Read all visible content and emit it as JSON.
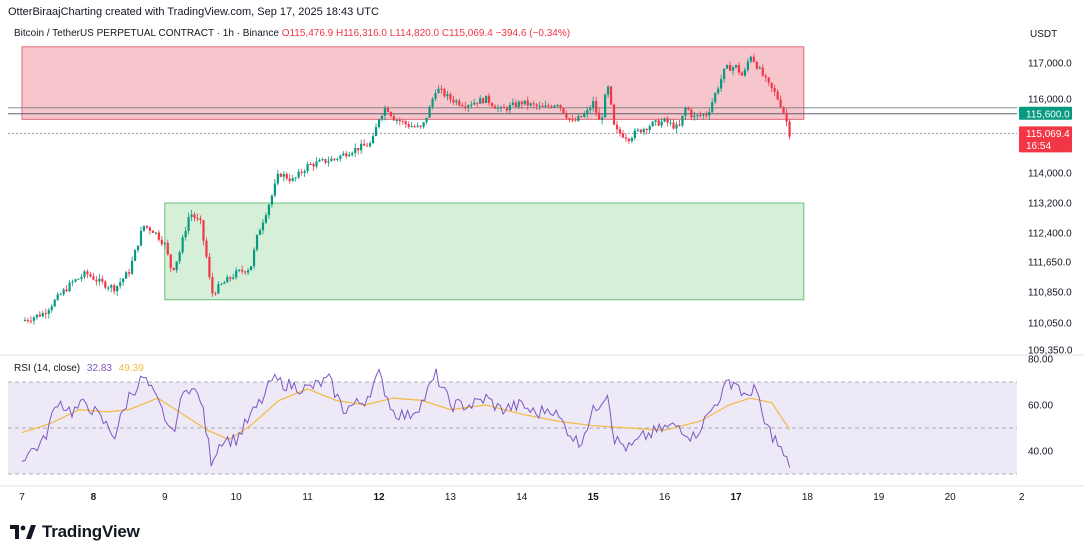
{
  "header": {
    "attribution": "OtterBiraajCharting created with TradingView.com, Sep 17, 2025 18:43 UTC"
  },
  "symbol": {
    "name": "Bitcoin / TetherUS PERPETUAL CONTRACT · 1h · Binance",
    "ohlc": "O115,476.9  H116,316.0  L114,820.0  C115,069.4  −394.6 (−0.34%)"
  },
  "currency": "USDT",
  "rsi": {
    "label": "RSI (14, close)",
    "value": "32.83",
    "ma_value": "49.39",
    "upper_band": 70,
    "lower_band": 30,
    "middle_band": 50,
    "ticks": [
      "80.00",
      "60.00",
      "40.00"
    ]
  },
  "branding": {
    "logo_text": "TradingView"
  },
  "colors": {
    "up": "#089981",
    "down": "#f23645",
    "resistance_zone": "#f7c6cc",
    "support_zone": "#d6efd9",
    "rsi_line": "#7e57c2",
    "rsi_ma": "#f5b941",
    "rsi_band_fill": "#ede9f7"
  },
  "chart_data": {
    "type": "candlestick",
    "title": "Bitcoin / TetherUS PERPETUAL CONTRACT · 1h · Binance",
    "y_axis": {
      "ticks": [
        "117,000.0",
        "116,000.0",
        "114,000.0",
        "113,200.0",
        "112,400.0",
        "111,650.0",
        "110,850.0",
        "110,050.0",
        "109,350.0"
      ]
    },
    "x_axis": {
      "ticks": [
        "7",
        "8",
        "9",
        "10",
        "11",
        "12",
        "13",
        "14",
        "15",
        "16",
        "17",
        "18",
        "19",
        "20",
        "2"
      ]
    },
    "zones": [
      {
        "name": "resistance",
        "from_price": 115450,
        "to_price": 117450,
        "from_day": 7.0,
        "to_day": 17.95
      },
      {
        "name": "support",
        "from_price": 110650,
        "to_price": 113200,
        "from_day": 9.0,
        "to_day": 17.95
      }
    ],
    "price_labels": {
      "level": "115,600.0",
      "last": "115,069.4",
      "countdown": "16:54"
    },
    "close_path": [
      [
        7.0,
        110100
      ],
      [
        7.3,
        110300
      ],
      [
        7.5,
        110700
      ],
      [
        7.7,
        111100
      ],
      [
        7.9,
        111350
      ],
      [
        8.1,
        111100
      ],
      [
        8.3,
        110950
      ],
      [
        8.5,
        111400
      ],
      [
        8.6,
        112000
      ],
      [
        8.7,
        112600
      ],
      [
        8.85,
        112450
      ],
      [
        9.0,
        112100
      ],
      [
        9.1,
        111400
      ],
      [
        9.2,
        111850
      ],
      [
        9.35,
        112950
      ],
      [
        9.5,
        112650
      ],
      [
        9.6,
        111600
      ],
      [
        9.65,
        110800
      ],
      [
        9.8,
        111050
      ],
      [
        10.0,
        111350
      ],
      [
        10.2,
        111500
      ],
      [
        10.3,
        112350
      ],
      [
        10.5,
        113400
      ],
      [
        10.6,
        114000
      ],
      [
        10.8,
        113800
      ],
      [
        11.0,
        114200
      ],
      [
        11.2,
        114300
      ],
      [
        11.4,
        114400
      ],
      [
        11.6,
        114600
      ],
      [
        11.9,
        114800
      ],
      [
        12.0,
        115500
      ],
      [
        12.1,
        115800
      ],
      [
        12.2,
        115500
      ],
      [
        12.4,
        115300
      ],
      [
        12.6,
        115200
      ],
      [
        12.7,
        115700
      ],
      [
        12.8,
        116300
      ],
      [
        13.0,
        116000
      ],
      [
        13.2,
        115850
      ],
      [
        13.5,
        116000
      ],
      [
        13.7,
        115700
      ],
      [
        14.0,
        115900
      ],
      [
        14.3,
        115750
      ],
      [
        14.5,
        115900
      ],
      [
        14.7,
        115350
      ],
      [
        14.9,
        115600
      ],
      [
        15.0,
        115900
      ],
      [
        15.1,
        115300
      ],
      [
        15.2,
        116400
      ],
      [
        15.3,
        115150
      ],
      [
        15.5,
        114950
      ],
      [
        15.6,
        115100
      ],
      [
        15.8,
        115300
      ],
      [
        16.0,
        115400
      ],
      [
        16.2,
        115200
      ],
      [
        16.3,
        115800
      ],
      [
        16.4,
        115500
      ],
      [
        16.6,
        115600
      ],
      [
        16.7,
        116100
      ],
      [
        16.85,
        116850
      ],
      [
        17.0,
        116900
      ],
      [
        17.1,
        116600
      ],
      [
        17.2,
        117250
      ],
      [
        17.3,
        116900
      ],
      [
        17.45,
        116400
      ],
      [
        17.55,
        116150
      ],
      [
        17.65,
        115750
      ],
      [
        17.7,
        115450
      ],
      [
        17.75,
        115069
      ]
    ],
    "rsi_path": [
      [
        7.0,
        37
      ],
      [
        7.3,
        44
      ],
      [
        7.5,
        62
      ],
      [
        7.7,
        57
      ],
      [
        7.9,
        61
      ],
      [
        8.1,
        54
      ],
      [
        8.3,
        47
      ],
      [
        8.5,
        64
      ],
      [
        8.7,
        72
      ],
      [
        8.85,
        64
      ],
      [
        9.0,
        55
      ],
      [
        9.1,
        47
      ],
      [
        9.3,
        69
      ],
      [
        9.5,
        63
      ],
      [
        9.65,
        36
      ],
      [
        9.8,
        45
      ],
      [
        10.0,
        45
      ],
      [
        10.2,
        55
      ],
      [
        10.4,
        64
      ],
      [
        10.5,
        71
      ],
      [
        10.7,
        69
      ],
      [
        11.0,
        67
      ],
      [
        11.3,
        71
      ],
      [
        11.5,
        58
      ],
      [
        11.8,
        62
      ],
      [
        12.0,
        73
      ],
      [
        12.2,
        57
      ],
      [
        12.4,
        55
      ],
      [
        12.6,
        61
      ],
      [
        12.8,
        73
      ],
      [
        13.0,
        60
      ],
      [
        13.3,
        60
      ],
      [
        13.5,
        63
      ],
      [
        13.7,
        58
      ],
      [
        14.0,
        60
      ],
      [
        14.2,
        56
      ],
      [
        14.4,
        59
      ],
      [
        14.6,
        51
      ],
      [
        14.8,
        43
      ],
      [
        15.0,
        57
      ],
      [
        15.2,
        66
      ],
      [
        15.3,
        45
      ],
      [
        15.5,
        41
      ],
      [
        15.7,
        46
      ],
      [
        16.0,
        50
      ],
      [
        16.2,
        51
      ],
      [
        16.4,
        46
      ],
      [
        16.6,
        55
      ],
      [
        16.7,
        60
      ],
      [
        16.9,
        70
      ],
      [
        17.0,
        70
      ],
      [
        17.15,
        62
      ],
      [
        17.25,
        69
      ],
      [
        17.4,
        52
      ],
      [
        17.55,
        45
      ],
      [
        17.75,
        32.8
      ]
    ],
    "rsi_ma_path": [
      [
        7.0,
        48
      ],
      [
        7.4,
        52
      ],
      [
        7.8,
        58
      ],
      [
        8.2,
        57
      ],
      [
        8.5,
        58
      ],
      [
        8.9,
        63
      ],
      [
        9.2,
        57
      ],
      [
        9.6,
        49
      ],
      [
        9.9,
        45
      ],
      [
        10.2,
        51
      ],
      [
        10.6,
        62
      ],
      [
        11.0,
        67
      ],
      [
        11.4,
        62
      ],
      [
        11.8,
        60
      ],
      [
        12.2,
        63
      ],
      [
        12.6,
        62
      ],
      [
        13.0,
        58
      ],
      [
        13.5,
        60
      ],
      [
        14.0,
        56
      ],
      [
        14.5,
        53
      ],
      [
        15.0,
        51
      ],
      [
        15.5,
        50
      ],
      [
        16.0,
        49
      ],
      [
        16.5,
        53
      ],
      [
        16.9,
        60
      ],
      [
        17.2,
        63
      ],
      [
        17.5,
        61
      ],
      [
        17.75,
        49.4
      ]
    ]
  }
}
